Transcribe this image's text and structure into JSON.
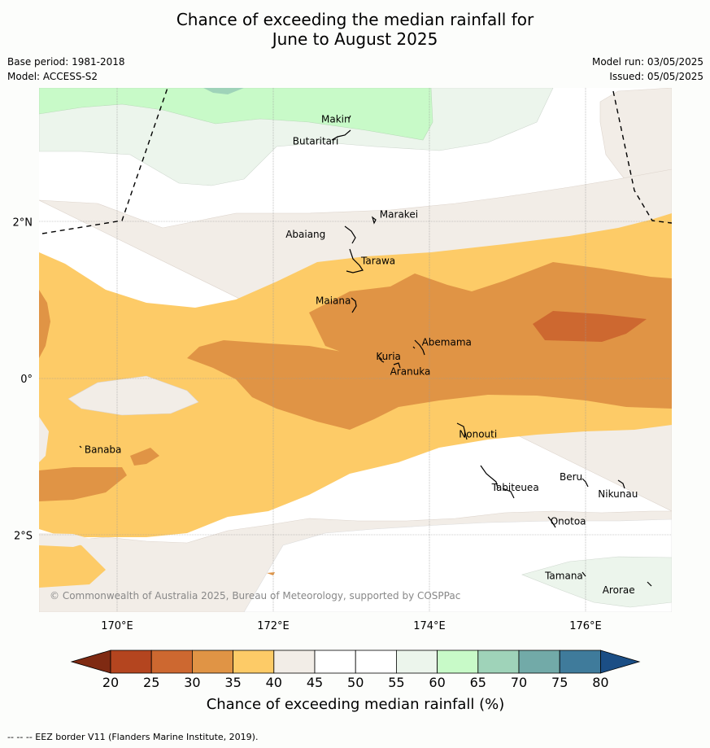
{
  "title": {
    "line1": "Chance of exceeding the median rainfall for",
    "line2": "June to August 2025"
  },
  "meta": {
    "base_period": "Base period: 1981-2018",
    "model": "Model: ACCESS-S2",
    "model_run": "Model run: 03/05/2025",
    "issued": "Issued: 05/05/2025"
  },
  "map": {
    "lon_ticks": [
      "170°E",
      "172°E",
      "174°E",
      "176°E"
    ],
    "lat_ticks": [
      "2°N",
      "0°",
      "2°S"
    ],
    "copyright": "© Commonwealth of Australia 2025, Bureau of Meteorology, supported by COSPPac",
    "places": [
      {
        "name": "Makin",
        "lon": 173.0,
        "lat": 3.33
      },
      {
        "name": "Butaritari",
        "lon": 172.8,
        "lat": 3.05
      },
      {
        "name": "Marakei",
        "lon": 173.3,
        "lat": 2.0
      },
      {
        "name": "Abaiang",
        "lon": 172.95,
        "lat": 1.8
      },
      {
        "name": "Tarawa",
        "lon": 173.0,
        "lat": 1.42
      },
      {
        "name": "Maiana",
        "lon": 173.0,
        "lat": 0.95
      },
      {
        "name": "Abemama",
        "lon": 173.85,
        "lat": 0.4
      },
      {
        "name": "Kuria",
        "lon": 173.4,
        "lat": 0.23
      },
      {
        "name": "Aranuka",
        "lon": 173.6,
        "lat": 0.17
      },
      {
        "name": "Banaba",
        "lon": 169.53,
        "lat": -0.87
      },
      {
        "name": "Nonouti",
        "lon": 174.43,
        "lat": -0.67
      },
      {
        "name": "Tabiteuea",
        "lon": 174.85,
        "lat": -1.35
      },
      {
        "name": "Beru",
        "lon": 176.0,
        "lat": -1.33
      },
      {
        "name": "Nikunau",
        "lon": 176.43,
        "lat": -1.37
      },
      {
        "name": "Onotoa",
        "lon": 175.57,
        "lat": -1.8
      },
      {
        "name": "Tamana",
        "lon": 175.98,
        "lat": -2.5
      },
      {
        "name": "Arorae",
        "lon": 176.82,
        "lat": -2.65
      }
    ]
  },
  "legend": {
    "title": "Chance of exceeding median rainfall (%)",
    "ticks": [
      "20",
      "25",
      "30",
      "35",
      "40",
      "45",
      "50",
      "55",
      "60",
      "65",
      "70",
      "75",
      "80"
    ],
    "colors": [
      "#7f2a12",
      "#b4451f",
      "#cd6830",
      "#e09445",
      "#fdcb67",
      "#f2ede7",
      "#ffffff",
      "#ffffff",
      "#ecf5ec",
      "#c8fac8",
      "#9fd3b9",
      "#72aaa8",
      "#3f7b9b",
      "#1b4e85"
    ]
  },
  "footer": "--  --  -- EEZ border V11 (Flanders Marine Institute, 2019)."
}
